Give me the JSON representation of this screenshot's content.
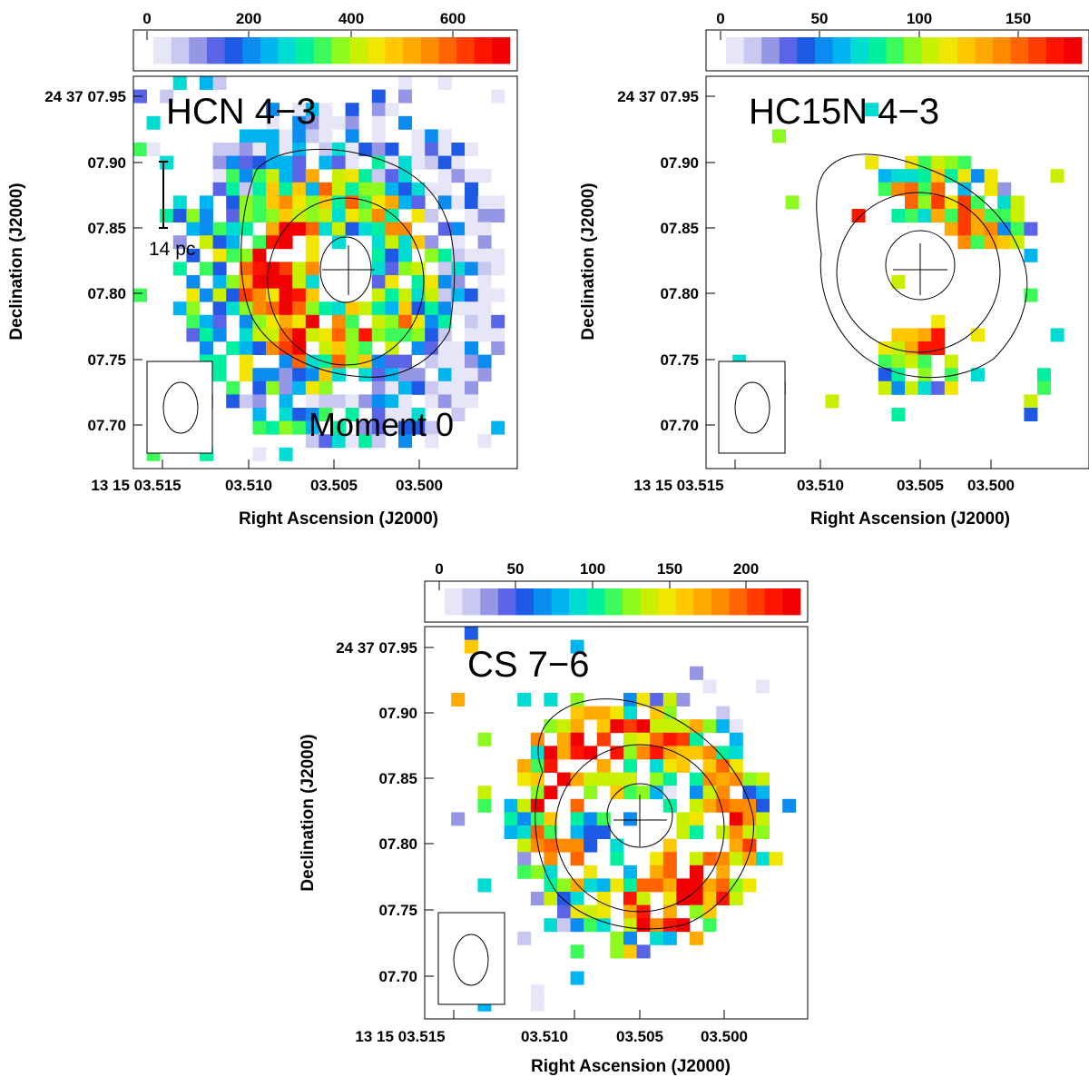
{
  "chart_data": [
    {
      "type": "heatmap",
      "title": "HCN 4−3",
      "annotation": "Moment 0",
      "scale_label": "14 pc",
      "xlabel": "Right Ascension (J2000)",
      "ylabel": "Declination (J2000)",
      "x_ticks": [
        "13 15 03.515",
        "03.510",
        "03.505",
        "03.500"
      ],
      "y_ticks": [
        "24 37 07.95",
        "07.90",
        "07.85",
        "07.80",
        "07.75",
        "07.70"
      ],
      "colorbar_ticks": [
        "0",
        "200",
        "400",
        "600"
      ],
      "colorbar_range": [
        0,
        730
      ],
      "seed": 11,
      "pattern": "ring_nw_heavy"
    },
    {
      "type": "heatmap",
      "title": "HC15N 4−3",
      "xlabel": "Right Ascension (J2000)",
      "ylabel": "Declination (J2000)",
      "x_ticks": [
        "13 15 03.515",
        "03.510",
        "03.505",
        "03.500"
      ],
      "y_ticks": [
        "24 37 07.95",
        "07.90",
        "07.85",
        "07.80",
        "07.75",
        "07.70"
      ],
      "colorbar_ticks": [
        "0",
        "50",
        "100",
        "150"
      ],
      "colorbar_range": [
        0,
        185
      ],
      "seed": 23,
      "pattern": "arcs"
    },
    {
      "type": "heatmap",
      "title": "CS 7−6",
      "xlabel": "Right Ascension (J2000)",
      "ylabel": "Declination (J2000)",
      "x_ticks": [
        "13 15 03.515",
        "03.510",
        "03.505",
        "03.500"
      ],
      "y_ticks": [
        "24 37 07.95",
        "07.90",
        "07.85",
        "07.80",
        "07.75",
        "07.70"
      ],
      "colorbar_ticks": [
        "0",
        "50",
        "100",
        "150",
        "200"
      ],
      "colorbar_range": [
        0,
        240
      ],
      "seed": 37,
      "pattern": "ring_sparse"
    }
  ],
  "colormap": [
    "#e6e6f8",
    "#c8c8f0",
    "#9696e6",
    "#5a64e6",
    "#1e5ae6",
    "#0a8cf0",
    "#00b4f0",
    "#00dcd2",
    "#00f0a0",
    "#3cfa5a",
    "#8cfa1e",
    "#c8f000",
    "#f0e600",
    "#ffc800",
    "#ffaa00",
    "#ff8c00",
    "#ff6400",
    "#ff3c00",
    "#ff1400",
    "#f00000"
  ]
}
